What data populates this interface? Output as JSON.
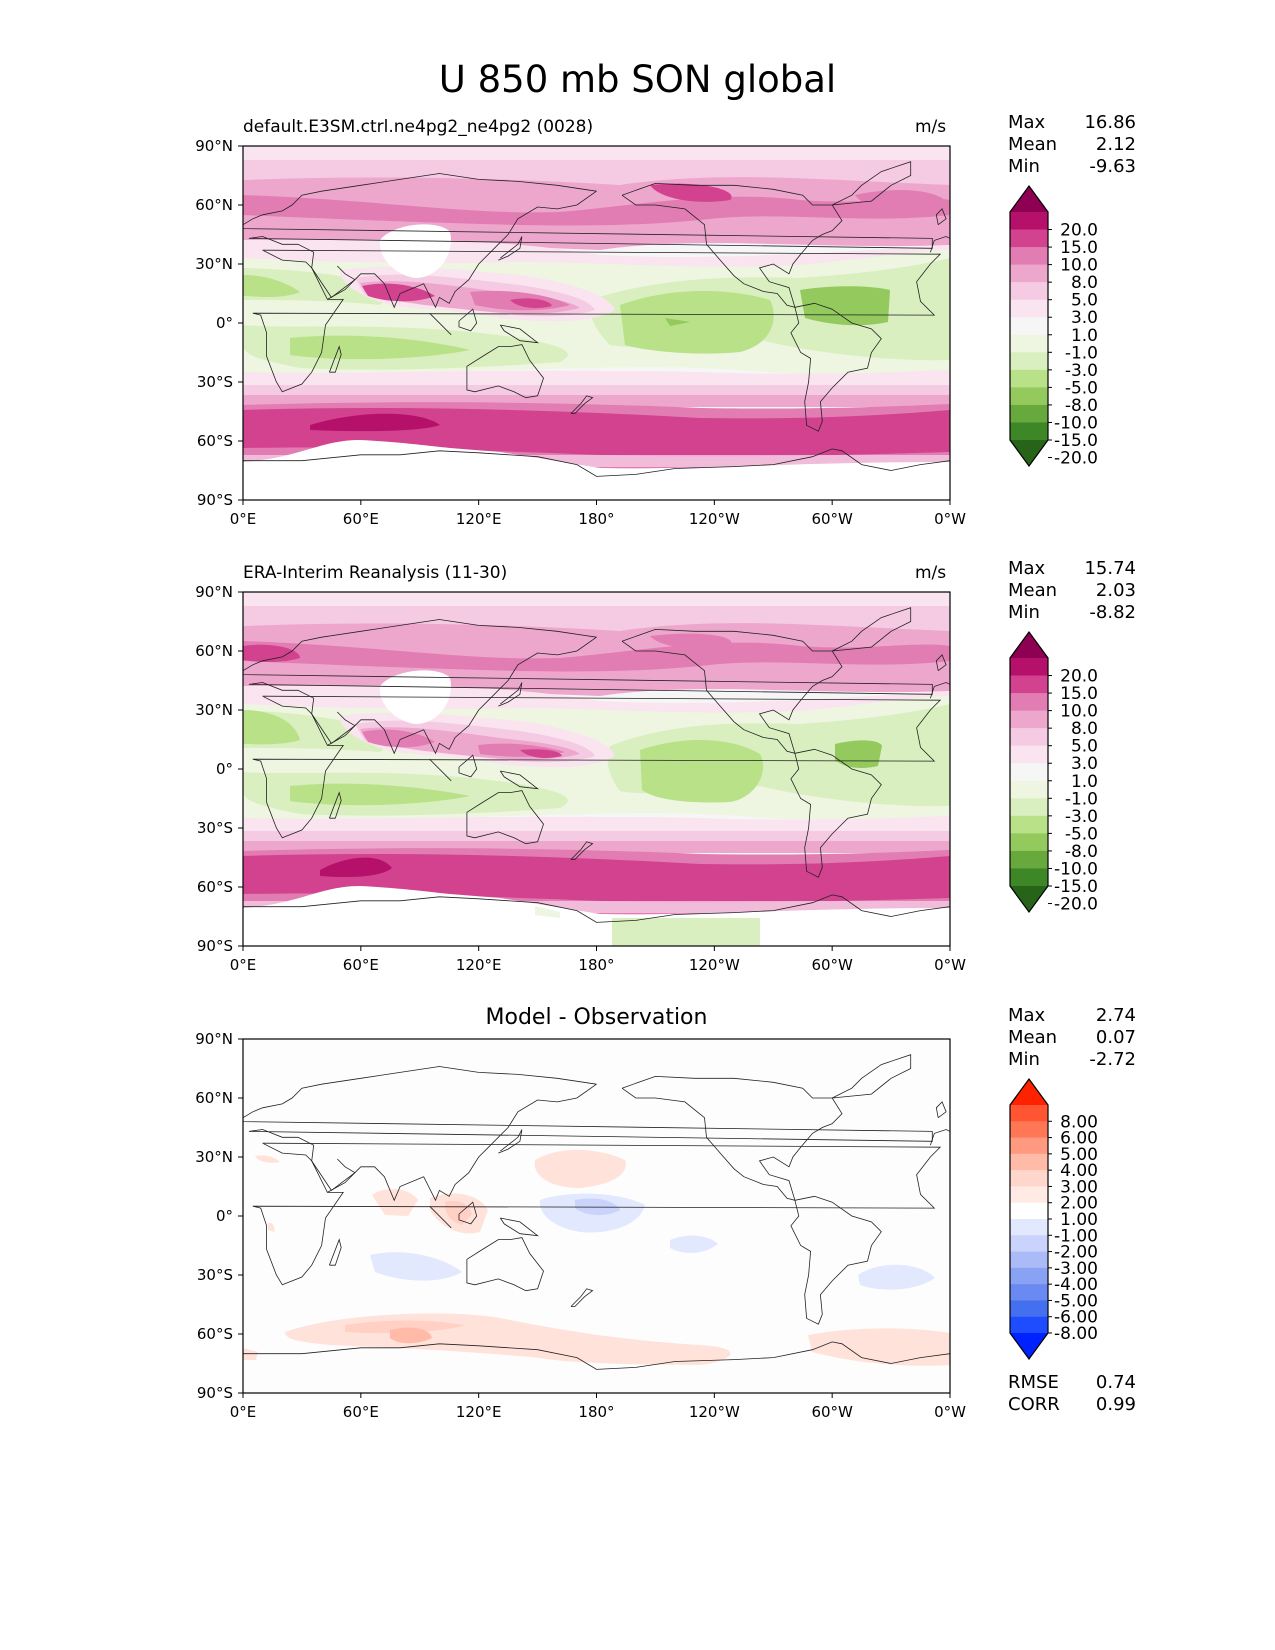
{
  "title": "U 850 mb SON global",
  "x_ticks": [
    "0°E",
    "60°E",
    "120°E",
    "180°",
    "120°W",
    "60°W",
    "0°W"
  ],
  "y_ticks": [
    "90°N",
    "60°N",
    "30°N",
    "0°",
    "30°S",
    "60°S",
    "90°S"
  ],
  "panels": [
    {
      "left_title": "default.E3SM.ctrl.ne4pg2_ne4pg2 (0028)",
      "units": "m/s",
      "stats": {
        "max_label": "Max",
        "max": "16.86",
        "mean_label": "Mean",
        "mean": "2.12",
        "min_label": "Min",
        "min": "-9.63"
      }
    },
    {
      "left_title": "ERA-Interim Reanalysis (11-30)",
      "units": "m/s",
      "stats": {
        "max_label": "Max",
        "max": "15.74",
        "mean_label": "Mean",
        "mean": "2.03",
        "min_label": "Min",
        "min": "-8.82"
      }
    },
    {
      "center_title": "Model - Observation",
      "stats": {
        "max_label": "Max",
        "max": "2.74",
        "mean_label": "Mean",
        "mean": "0.07",
        "min_label": "Min",
        "min": "-2.72"
      },
      "metrics": {
        "rmse_label": "RMSE",
        "rmse": "0.74",
        "corr_label": "CORR",
        "corr": "0.99"
      }
    }
  ],
  "colorbars": {
    "field": {
      "labels": [
        "20.0",
        "15.0",
        "10.0",
        "8.0",
        "5.0",
        "3.0",
        "1.0",
        "-1.0",
        "-3.0",
        "-5.0",
        "-8.0",
        "-10.0",
        "-15.0",
        "-20.0"
      ],
      "colors": [
        "#8e0152",
        "#b5116b",
        "#d2428f",
        "#e27db3",
        "#eda7cd",
        "#f5cbe3",
        "#f9e4ef",
        "#f6f6f6",
        "#eef6e2",
        "#d9efc0",
        "#b8e188",
        "#93c95d",
        "#68a93d",
        "#3e8726",
        "#276419"
      ]
    },
    "diff": {
      "labels": [
        "8.00",
        "6.00",
        "5.00",
        "4.00",
        "3.00",
        "2.00",
        "1.00",
        "-1.00",
        "-2.00",
        "-3.00",
        "-4.00",
        "-5.00",
        "-6.00",
        "-8.00"
      ],
      "colors": [
        "#ff2200",
        "#ff5533",
        "#ff7755",
        "#ff9a80",
        "#ffbba8",
        "#ffd6cb",
        "#ffeae4",
        "#ffffff",
        "#e2e8fd",
        "#c9d3fb",
        "#aabbf7",
        "#8aa2f4",
        "#6a8af2",
        "#4470f0",
        "#1e4cff",
        "#0022ff"
      ]
    }
  },
  "map_data": {
    "field_regions": [
      {
        "desc": "southern westerly jet core",
        "value": 17
      },
      {
        "desc": "north pacific westerlies",
        "value": 8
      },
      {
        "desc": "tropical pacific easterlies",
        "value": -7
      },
      {
        "desc": "tropical atlantic easterlies",
        "value": -8
      },
      {
        "desc": "indian ocean monsoon westerlies",
        "value": 12
      }
    ],
    "diff_regions": [
      {
        "desc": "southern ocean positive bias",
        "value": 2
      },
      {
        "desc": "central pacific negative bias",
        "value": -2
      },
      {
        "desc": "south indian negative bias",
        "value": -1
      },
      {
        "desc": "south atlantic negative bias",
        "value": -1
      },
      {
        "desc": "maritime continent positive bias",
        "value": 1.5
      }
    ]
  }
}
